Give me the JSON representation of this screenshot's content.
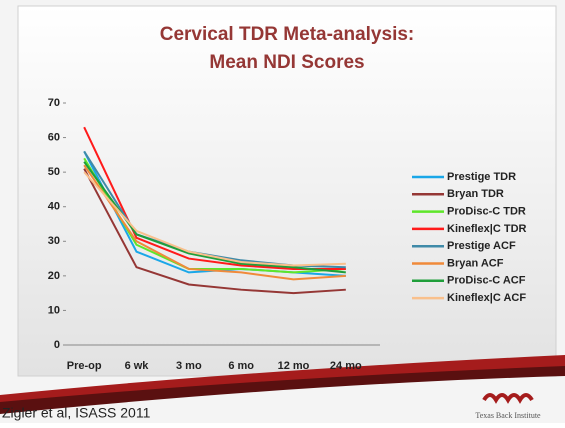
{
  "chart_data": {
    "type": "line",
    "title": [
      "Cervical TDR Meta-analysis:",
      "Mean NDI Scores"
    ],
    "categories": [
      "Pre-op",
      "6 wk",
      "3 mo",
      "6 mo",
      "12 mo",
      "24 mo"
    ],
    "ylim": [
      0,
      70
    ],
    "yticks": [
      0,
      10,
      20,
      30,
      40,
      50,
      60,
      70
    ],
    "grid": false,
    "legend": "right",
    "series": [
      {
        "name": "Prestige TDR",
        "color": "#1aa7e8",
        "values": [
          56,
          27,
          21,
          22,
          21,
          20
        ]
      },
      {
        "name": "Bryan TDR",
        "color": "#953735",
        "values": [
          51,
          22.5,
          17.5,
          16,
          15,
          16
        ]
      },
      {
        "name": "ProDisc-C TDR",
        "color": "#5ee62a",
        "values": [
          54,
          29,
          22,
          22,
          21,
          22
        ]
      },
      {
        "name": "Kineflex|C TDR",
        "color": "#ff1a1a",
        "values": [
          63,
          31,
          25,
          23,
          22,
          22
        ]
      },
      {
        "name": "Prestige ACF",
        "color": "#3f8aa8",
        "values": [
          56,
          32,
          27,
          24.5,
          23,
          22.5
        ]
      },
      {
        "name": "Bryan ACF",
        "color": "#f08a3a",
        "values": [
          52,
          30,
          22,
          21,
          19,
          20
        ]
      },
      {
        "name": "ProDisc-C ACF",
        "color": "#1f9e3a",
        "values": [
          53,
          32,
          26.5,
          23.5,
          22.5,
          21
        ]
      },
      {
        "name": "Kineflex|C ACF",
        "color": "#f9c08c",
        "values": [
          50,
          33,
          27,
          24,
          23,
          23.5
        ]
      }
    ]
  },
  "footer": {
    "citation": "Zigler et al, ISASS 2011",
    "logo": "Texas Back Institute"
  }
}
